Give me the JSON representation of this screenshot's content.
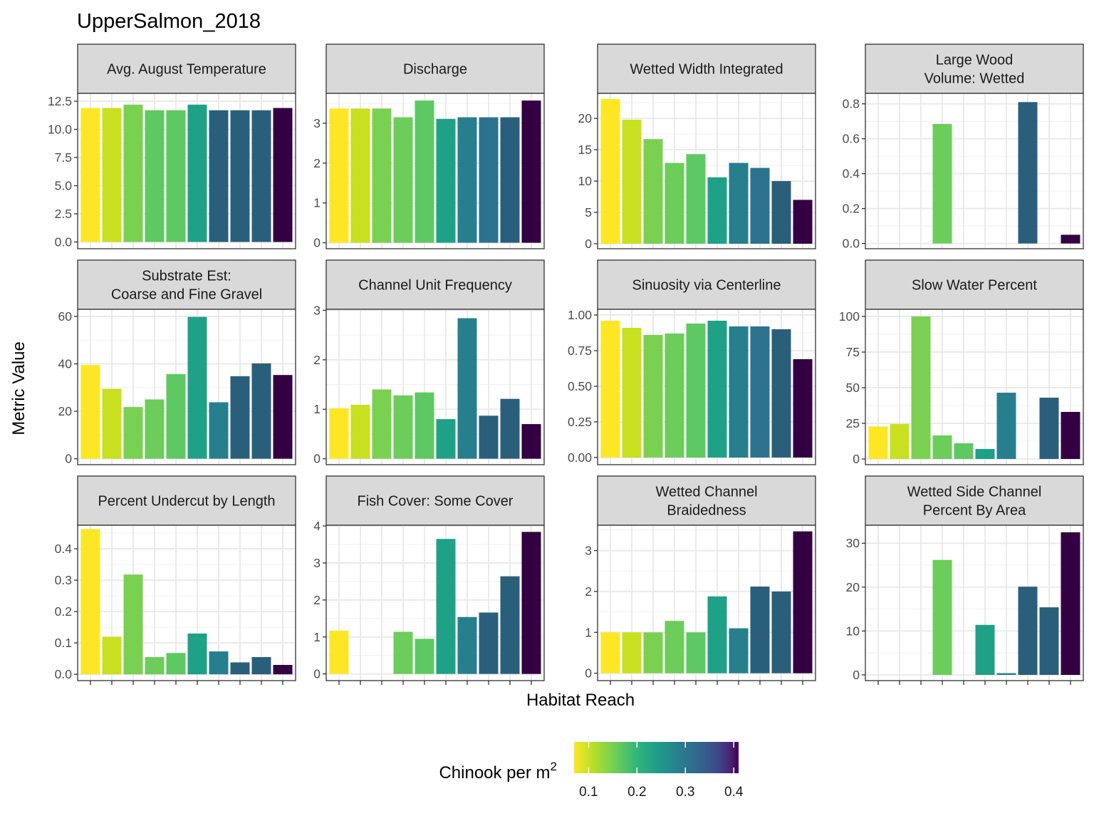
{
  "chart_data": {
    "type": "bar",
    "title": "UpperSalmon_2018",
    "xlabel": "Habitat Reach",
    "ylabel": "Metric Value",
    "grid": true,
    "legend": {
      "title": "Chinook per m",
      "title_superscript": "2",
      "placement": "bottom",
      "type": "colorbar",
      "palette": "viridis (reversed)",
      "range": [
        0.07,
        0.41
      ],
      "ticks": [
        0.1,
        0.2,
        0.3,
        0.4
      ],
      "tick_labels": [
        "0.1",
        "0.2",
        "0.3",
        "0.4"
      ]
    },
    "reach_colors": [
      "#fde725",
      "#c8e020",
      "#7ad151",
      "#6ccd5a",
      "#5ec962",
      "#1fa187",
      "#277f8e",
      "#2c728e",
      "#2a5f7c",
      "#2e5b77",
      "#330042"
    ],
    "panels": [
      {
        "label_lines": [
          "Avg. August Temperature"
        ],
        "ylim": [
          -0.6,
          13.2
        ],
        "ticks": [
          0,
          2.5,
          5,
          7.5,
          10,
          12.5
        ],
        "tick_labels": [
          "0.0",
          "2.5",
          "5.0",
          "7.5",
          "10.0",
          "12.5"
        ],
        "values": [
          11.9,
          11.9,
          12.2,
          11.7,
          11.7,
          12.2,
          11.7,
          11.7,
          11.7,
          11.9
        ],
        "colors": [
          0,
          1,
          2,
          4,
          4,
          5,
          8,
          8,
          8,
          10
        ]
      },
      {
        "label_lines": [
          "Discharge"
        ],
        "ylim": [
          -0.15,
          3.75
        ],
        "ticks": [
          0,
          1,
          2,
          3
        ],
        "tick_labels": [
          "0",
          "1",
          "2",
          "3"
        ],
        "values": [
          3.37,
          3.37,
          3.37,
          3.15,
          3.57,
          3.11,
          3.15,
          3.15,
          3.15,
          3.57
        ],
        "colors": [
          0,
          1,
          2,
          3,
          4,
          5,
          6,
          7,
          8,
          10
        ]
      },
      {
        "label_lines": [
          "Wetted Width Integrated"
        ],
        "ylim": [
          -0.8,
          24.0
        ],
        "ticks": [
          0,
          5,
          10,
          15,
          20
        ],
        "tick_labels": [
          "0",
          "5",
          "10",
          "15",
          "20"
        ],
        "values": [
          23.1,
          19.8,
          16.7,
          12.9,
          14.3,
          10.6,
          12.9,
          12.1,
          10.0,
          7.0
        ],
        "colors": [
          0,
          1,
          2,
          3,
          4,
          5,
          6,
          7,
          8,
          10
        ]
      },
      {
        "label_lines": [
          "Large Wood",
          "Volume: Wetted"
        ],
        "ylim": [
          -0.03,
          0.86
        ],
        "ticks": [
          0,
          0.2,
          0.4,
          0.6,
          0.8
        ],
        "tick_labels": [
          "0.0",
          "0.2",
          "0.4",
          "0.6",
          "0.8"
        ],
        "values": [
          null,
          null,
          null,
          0.685,
          null,
          null,
          null,
          0.81,
          null,
          0.05
        ],
        "colors": [
          0,
          1,
          2,
          3,
          4,
          5,
          6,
          8,
          8,
          10
        ]
      },
      {
        "label_lines": [
          "Substrate Est:",
          "Coarse and Fine Gravel"
        ],
        "ylim": [
          -2.5,
          63.0
        ],
        "ticks": [
          0,
          20,
          40,
          60
        ],
        "tick_labels": [
          "0",
          "20",
          "40",
          "60"
        ],
        "values": [
          39.5,
          29.5,
          21.8,
          25.0,
          35.7,
          59.8,
          23.8,
          34.8,
          40.2,
          35.3
        ],
        "colors": [
          0,
          1,
          2,
          3,
          4,
          5,
          6,
          8,
          8,
          10
        ]
      },
      {
        "label_lines": [
          "Channel Unit Frequency"
        ],
        "ylim": [
          -0.12,
          3.02
        ],
        "ticks": [
          0,
          1,
          2,
          3
        ],
        "tick_labels": [
          "0",
          "1",
          "2",
          "3"
        ],
        "values": [
          1.02,
          1.09,
          1.4,
          1.28,
          1.34,
          0.8,
          2.84,
          0.87,
          1.21,
          0.7
        ],
        "colors": [
          0,
          1,
          2,
          3,
          4,
          5,
          6,
          8,
          8,
          10
        ]
      },
      {
        "label_lines": [
          "Sinuosity via Centerline"
        ],
        "ylim": [
          -0.05,
          1.04
        ],
        "ticks": [
          0,
          0.25,
          0.5,
          0.75,
          1.0
        ],
        "tick_labels": [
          "0.00",
          "0.25",
          "0.50",
          "0.75",
          "1.00"
        ],
        "values": [
          0.96,
          0.91,
          0.86,
          0.87,
          0.94,
          0.96,
          0.92,
          0.92,
          0.9,
          0.69
        ],
        "colors": [
          0,
          1,
          2,
          3,
          4,
          5,
          6,
          7,
          8,
          10
        ]
      },
      {
        "label_lines": [
          "Slow Water Percent"
        ],
        "ylim": [
          -4.0,
          105.0
        ],
        "ticks": [
          0,
          25,
          50,
          75,
          100
        ],
        "tick_labels": [
          "0",
          "25",
          "50",
          "75",
          "100"
        ],
        "values": [
          22.8,
          24.5,
          100.0,
          16.5,
          11.0,
          7.0,
          46.5,
          null,
          43.0,
          33.0
        ],
        "colors": [
          0,
          1,
          2,
          3,
          4,
          5,
          6,
          7,
          8,
          10
        ]
      },
      {
        "label_lines": [
          "Percent Undercut by Length"
        ],
        "ylim": [
          -0.02,
          0.475
        ],
        "ticks": [
          0,
          0.1,
          0.2,
          0.3,
          0.4
        ],
        "tick_labels": [
          "0.0",
          "0.1",
          "0.2",
          "0.3",
          "0.4"
        ],
        "values": [
          0.463,
          0.12,
          0.318,
          0.055,
          0.068,
          0.13,
          0.073,
          0.038,
          0.055,
          0.03
        ],
        "colors": [
          0,
          1,
          2,
          3,
          4,
          5,
          6,
          8,
          8,
          10
        ]
      },
      {
        "label_lines": [
          "Fish Cover: Some Cover"
        ],
        "ylim": [
          -0.18,
          4.02
        ],
        "ticks": [
          0,
          1,
          2,
          3,
          4
        ],
        "tick_labels": [
          "0",
          "1",
          "2",
          "3",
          "4"
        ],
        "values": [
          1.17,
          null,
          null,
          1.14,
          0.95,
          3.65,
          1.54,
          1.66,
          2.64,
          3.84
        ],
        "colors": [
          0,
          1,
          2,
          3,
          4,
          5,
          6,
          8,
          8,
          10
        ]
      },
      {
        "label_lines": [
          "Wetted Channel",
          "Braidedness"
        ],
        "ylim": [
          -0.18,
          3.62
        ],
        "ticks": [
          0,
          1,
          2,
          3
        ],
        "tick_labels": [
          "0",
          "1",
          "2",
          "3"
        ],
        "values": [
          1.0,
          1.0,
          1.0,
          1.28,
          1.0,
          1.88,
          1.1,
          2.12,
          2.0,
          3.47
        ],
        "colors": [
          0,
          1,
          2,
          3,
          4,
          5,
          6,
          8,
          8,
          10
        ]
      },
      {
        "label_lines": [
          "Wetted Side Channel",
          "Percent By Area"
        ],
        "ylim": [
          -1.3,
          34.1
        ],
        "ticks": [
          0,
          10,
          20,
          30
        ],
        "tick_labels": [
          "0",
          "10",
          "20",
          "30"
        ],
        "values": [
          null,
          null,
          null,
          26.2,
          null,
          11.4,
          0.4,
          20.1,
          15.4,
          32.5
        ],
        "colors": [
          0,
          1,
          2,
          3,
          4,
          5,
          6,
          8,
          8,
          10
        ]
      }
    ]
  }
}
